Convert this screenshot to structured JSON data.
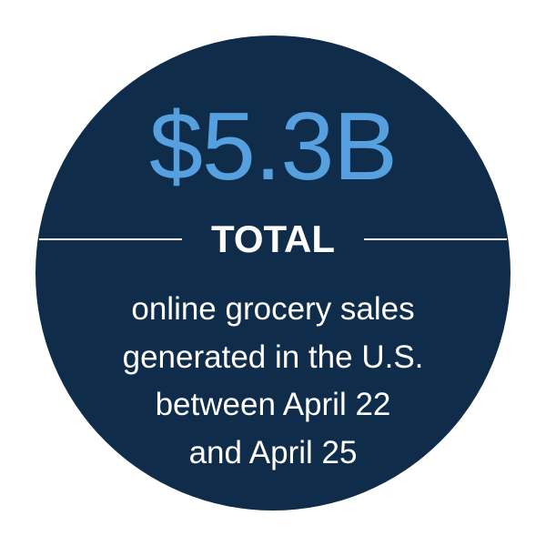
{
  "stat": {
    "value": "$5.3B",
    "label": "TOTAL",
    "description_lines": [
      "online grocery sales",
      "generated in the U.S.",
      "between April 22",
      "and April 25"
    ]
  },
  "colors": {
    "circle_background": "#0f2d4b",
    "accent": "#57a0e0",
    "text": "#ffffff"
  }
}
